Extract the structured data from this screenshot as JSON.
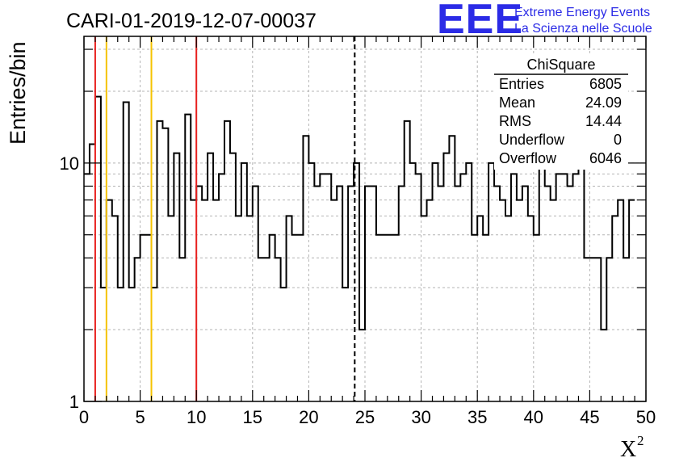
{
  "page": {
    "title": "CARI-01-2019-12-07-00037"
  },
  "logo": {
    "mark": "EEE",
    "line1": "Extreme Energy Events",
    "line2": "La Scienza nelle Scuole"
  },
  "chart_data": {
    "type": "histogram",
    "title": "CARI-01-2019-12-07-00037",
    "xlabel": "X",
    "xlabel_superscript": "2",
    "ylabel": "Entries/bin",
    "xlim": [
      0,
      50
    ],
    "ylim": [
      1,
      34
    ],
    "yscale": "log",
    "grid": true,
    "x_ticks": [
      "0",
      "5",
      "10",
      "15",
      "20",
      "25",
      "30",
      "35",
      "40",
      "45",
      "50"
    ],
    "x_tick_values": [
      0,
      5,
      10,
      15,
      20,
      25,
      30,
      35,
      40,
      45,
      50
    ],
    "y_ticks": [
      "1",
      "10"
    ],
    "y_tick_values": [
      1,
      10
    ],
    "bin_width": 0.5,
    "bin_start": 0,
    "values": [
      9,
      12,
      19,
      3,
      7,
      6,
      3,
      18,
      3,
      4,
      5,
      5,
      3,
      15,
      14,
      6,
      11,
      4,
      16,
      7,
      8,
      7,
      11,
      7,
      9,
      15,
      11,
      6,
      10,
      6,
      8,
      4,
      4,
      5,
      4,
      3,
      6,
      5,
      5,
      13,
      10,
      8,
      9,
      9,
      7,
      8,
      3,
      8,
      10,
      2,
      8,
      8,
      5,
      5,
      5,
      5,
      8,
      15,
      10,
      9,
      6,
      7,
      10,
      8,
      11,
      13,
      8,
      9,
      10,
      5,
      6,
      5,
      10,
      8,
      7,
      6,
      9,
      7,
      8,
      6,
      5,
      12,
      8,
      7,
      9,
      9,
      8,
      9,
      10,
      4,
      4,
      4,
      2,
      4,
      6,
      7,
      4,
      7
    ],
    "vertical_lines": [
      {
        "x": 1,
        "color": "#e8201e",
        "style": "solid"
      },
      {
        "x": 2,
        "color": "#f5c300",
        "style": "solid"
      },
      {
        "x": 6,
        "color": "#f5c300",
        "style": "solid"
      },
      {
        "x": 10,
        "color": "#e8201e",
        "style": "solid"
      },
      {
        "x": 24.09,
        "color": "#000000",
        "style": "dashed"
      }
    ],
    "stats_box": {
      "title": "ChiSquare",
      "rows": [
        {
          "label": "Entries",
          "value": "6805"
        },
        {
          "label": "Mean",
          "value": "24.09"
        },
        {
          "label": "RMS",
          "value": "14.44"
        },
        {
          "label": "Underflow",
          "value": "0"
        },
        {
          "label": "Overflow",
          "value": "6046"
        }
      ]
    }
  }
}
